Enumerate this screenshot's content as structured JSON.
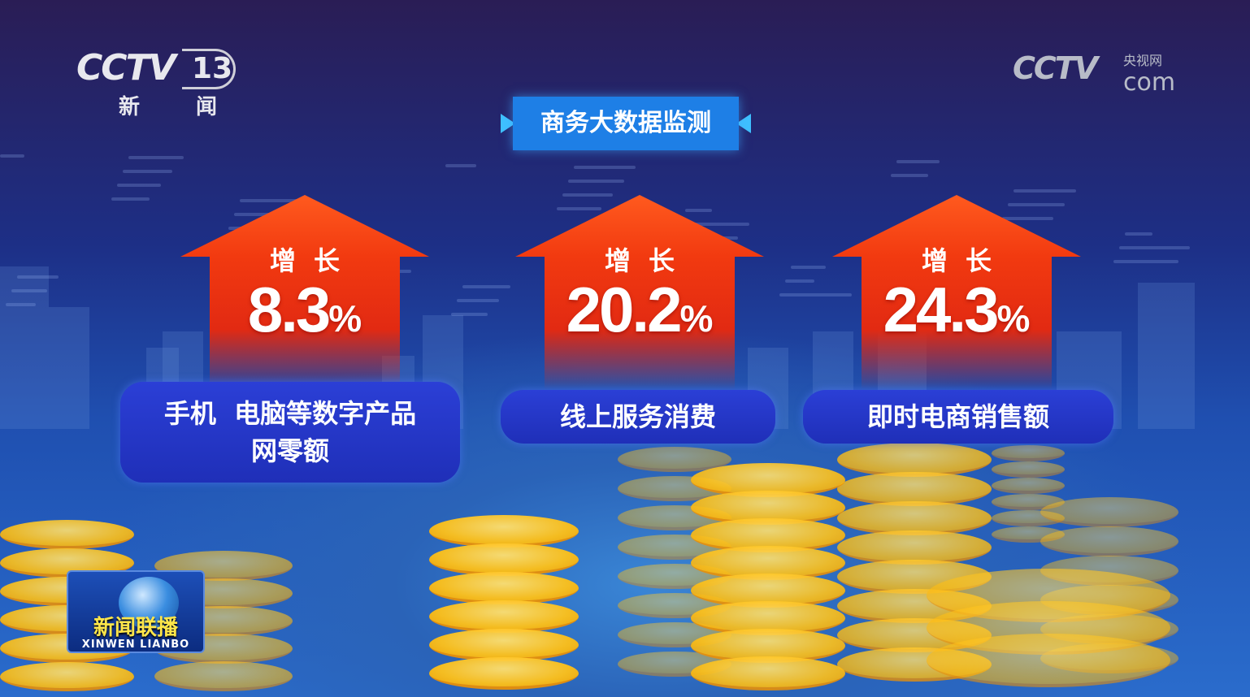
{
  "channel_logo": {
    "brand": "CCTV",
    "number": "13",
    "subtitle": "新 闻"
  },
  "site_logo": {
    "brand": "CCTV",
    "cn": "央视网",
    "com": "com"
  },
  "title": "商务大数据监测",
  "items": [
    {
      "growth_label": "增长",
      "value": "8.3",
      "unit": "%",
      "category_line1": "手机  电脑等数字产品",
      "category_line2": "网零额"
    },
    {
      "growth_label": "增长",
      "value": "20.2",
      "unit": "%",
      "category_line1": "线上服务消费",
      "category_line2": ""
    },
    {
      "growth_label": "增长",
      "value": "24.3",
      "unit": "%",
      "category_line1": "即时电商销售额",
      "category_line2": ""
    }
  ],
  "program_logo": {
    "cn": "新闻联播",
    "en": "XINWEN  LIANBO"
  },
  "colors": {
    "arrow": "#f23a10",
    "pill": "#2335c8",
    "title_bg": "#1e7fe6",
    "coin": "#ffc21a"
  }
}
